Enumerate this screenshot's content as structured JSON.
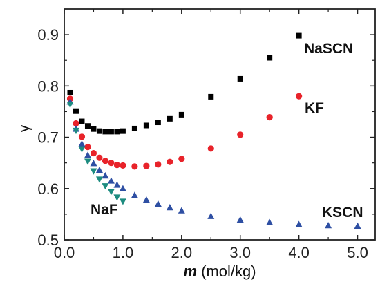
{
  "chart_data": {
    "type": "scatter",
    "title": "",
    "xlabel_symbol": "m",
    "xlabel_unit": " (mol/kg)",
    "ylabel": "γ",
    "xlim": [
      0.0,
      5.3
    ],
    "ylim": [
      0.5,
      0.95
    ],
    "xticks": [
      0.0,
      1.0,
      2.0,
      3.0,
      4.0,
      5.0
    ],
    "xtick_labels": [
      "0.0",
      "1.0",
      "2.0",
      "3.0",
      "4.0",
      "5.0"
    ],
    "yticks": [
      0.5,
      0.6,
      0.7,
      0.8,
      0.9
    ],
    "ytick_labels": [
      "0.5",
      "0.6",
      "0.7",
      "0.8",
      "0.9"
    ],
    "grid": false,
    "legend": "none (series labelled directly on plot)",
    "series": [
      {
        "name": "NaSCN",
        "marker": "square",
        "color": "#000000",
        "x": [
          0.1,
          0.2,
          0.3,
          0.4,
          0.5,
          0.6,
          0.7,
          0.8,
          0.9,
          1.0,
          1.2,
          1.4,
          1.6,
          1.8,
          2.0,
          2.5,
          3.0,
          3.5,
          4.0
        ],
        "y": [
          0.787,
          0.751,
          0.731,
          0.722,
          0.716,
          0.712,
          0.711,
          0.711,
          0.711,
          0.712,
          0.717,
          0.723,
          0.729,
          0.736,
          0.744,
          0.779,
          0.814,
          0.855,
          0.898
        ]
      },
      {
        "name": "KF",
        "marker": "circle",
        "color": "#e8232a",
        "x": [
          0.1,
          0.2,
          0.3,
          0.4,
          0.5,
          0.6,
          0.7,
          0.8,
          0.9,
          1.0,
          1.2,
          1.4,
          1.6,
          1.8,
          2.0,
          2.5,
          3.0,
          3.5,
          4.0
        ],
        "y": [
          0.775,
          0.727,
          0.701,
          0.681,
          0.669,
          0.66,
          0.654,
          0.65,
          0.646,
          0.645,
          0.643,
          0.644,
          0.647,
          0.652,
          0.658,
          0.678,
          0.705,
          0.739,
          0.78
        ]
      },
      {
        "name": "KSCN",
        "marker": "triangle-up",
        "color": "#2e4fa3",
        "x": [
          0.1,
          0.2,
          0.3,
          0.4,
          0.5,
          0.6,
          0.7,
          0.8,
          0.9,
          1.0,
          1.2,
          1.4,
          1.6,
          1.8,
          2.0,
          2.5,
          3.0,
          3.5,
          4.0,
          4.5,
          5.0
        ],
        "y": [
          0.769,
          0.716,
          0.687,
          0.665,
          0.649,
          0.636,
          0.625,
          0.615,
          0.607,
          0.6,
          0.587,
          0.578,
          0.57,
          0.563,
          0.557,
          0.546,
          0.539,
          0.534,
          0.53,
          0.528,
          0.527
        ]
      },
      {
        "name": "NaF",
        "marker": "triangle-down",
        "color": "#1d8c80",
        "x": [
          0.1,
          0.2,
          0.3,
          0.4,
          0.5,
          0.6,
          0.7,
          0.8,
          0.9,
          1.0
        ],
        "y": [
          0.764,
          0.713,
          0.677,
          0.653,
          0.634,
          0.618,
          0.605,
          0.594,
          0.583,
          0.575
        ]
      }
    ]
  }
}
